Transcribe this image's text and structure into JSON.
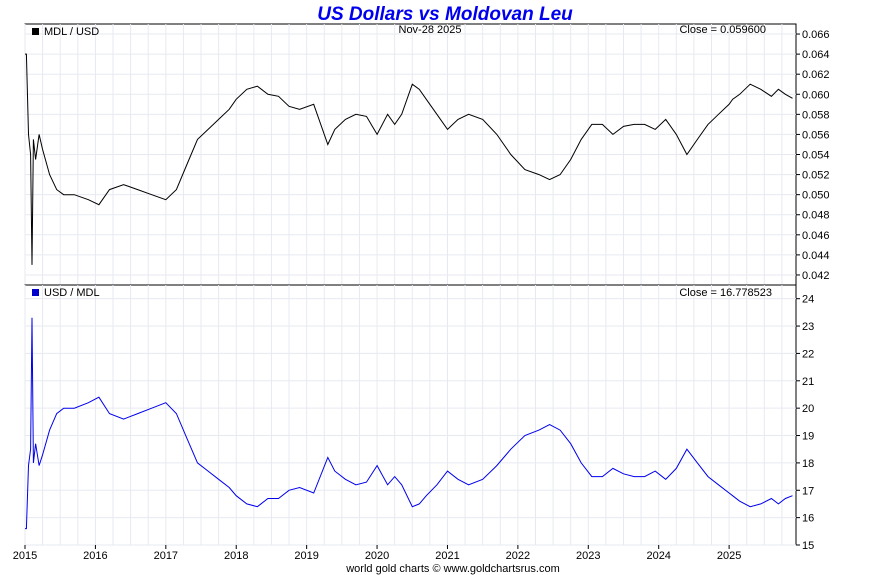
{
  "header": {
    "title": "US Dollars vs Moldovan Leu",
    "title_color": "#0000ee",
    "date": "Nov-28  2025",
    "footer": "world gold charts © www.goldchartsrus.com"
  },
  "chart_data": [
    {
      "type": "line",
      "legend": "MDL / USD",
      "legend_color": "#000000",
      "series_color": "#000000",
      "close_label": "Close = 0.059600",
      "ylim": [
        0.041,
        0.067
      ],
      "yticks": [
        0.042,
        0.044,
        0.046,
        0.048,
        0.05,
        0.052,
        0.054,
        0.056,
        0.058,
        0.06,
        0.062,
        0.064,
        0.066
      ],
      "ytick_labels": [
        "0.042",
        "0.044",
        "0.046",
        "0.048",
        "0.050",
        "0.052",
        "0.054",
        "0.056",
        "0.058",
        "0.060",
        "0.062",
        "0.064",
        "0.066"
      ],
      "grid": true,
      "x": [
        2015.0,
        2015.02,
        2015.05,
        2015.08,
        2015.1,
        2015.12,
        2015.15,
        2015.2,
        2015.25,
        2015.35,
        2015.45,
        2015.55,
        2015.7,
        2015.9,
        2016.05,
        2016.2,
        2016.4,
        2016.6,
        2016.8,
        2017.0,
        2017.15,
        2017.3,
        2017.45,
        2017.6,
        2017.75,
        2017.9,
        2018.0,
        2018.15,
        2018.3,
        2018.45,
        2018.6,
        2018.75,
        2018.9,
        2019.1,
        2019.3,
        2019.4,
        2019.55,
        2019.7,
        2019.85,
        2020.0,
        2020.15,
        2020.25,
        2020.35,
        2020.5,
        2020.6,
        2020.7,
        2020.85,
        2021.0,
        2021.15,
        2021.3,
        2021.5,
        2021.7,
        2021.9,
        2022.1,
        2022.3,
        2022.45,
        2022.6,
        2022.75,
        2022.9,
        2023.05,
        2023.2,
        2023.35,
        2023.5,
        2023.65,
        2023.8,
        2023.95,
        2024.1,
        2024.25,
        2024.4,
        2024.55,
        2024.7,
        2024.85,
        2025.0,
        2025.05,
        2025.15,
        2025.3,
        2025.45,
        2025.6,
        2025.7,
        2025.8,
        2025.9
      ],
      "y": [
        0.064,
        0.064,
        0.056,
        0.054,
        0.043,
        0.0555,
        0.0535,
        0.056,
        0.0545,
        0.052,
        0.0505,
        0.05,
        0.05,
        0.0495,
        0.049,
        0.0505,
        0.051,
        0.0505,
        0.05,
        0.0495,
        0.0505,
        0.053,
        0.0555,
        0.0565,
        0.0575,
        0.0585,
        0.0595,
        0.0605,
        0.0608,
        0.06,
        0.0598,
        0.0588,
        0.0585,
        0.059,
        0.055,
        0.0565,
        0.0575,
        0.058,
        0.0578,
        0.056,
        0.058,
        0.057,
        0.058,
        0.061,
        0.0605,
        0.0595,
        0.058,
        0.0565,
        0.0575,
        0.058,
        0.0575,
        0.056,
        0.054,
        0.0525,
        0.052,
        0.0515,
        0.052,
        0.0535,
        0.0555,
        0.057,
        0.057,
        0.056,
        0.0568,
        0.057,
        0.057,
        0.0565,
        0.0575,
        0.056,
        0.054,
        0.0555,
        0.057,
        0.058,
        0.059,
        0.0595,
        0.06,
        0.061,
        0.0605,
        0.0598,
        0.0605,
        0.06,
        0.0596
      ]
    },
    {
      "type": "line",
      "legend": "USD / MDL",
      "legend_color": "#0000cc",
      "series_color": "#0000ee",
      "close_label": "Close = 16.778523",
      "ylim": [
        15,
        24.5
      ],
      "yticks": [
        15,
        16,
        17,
        18,
        19,
        20,
        21,
        22,
        23,
        24
      ],
      "ytick_labels": [
        "15",
        "16",
        "17",
        "18",
        "19",
        "20",
        "21",
        "22",
        "23",
        "24"
      ],
      "grid": true,
      "x": [
        2015.0,
        2015.02,
        2015.05,
        2015.08,
        2015.1,
        2015.12,
        2015.15,
        2015.2,
        2015.25,
        2015.35,
        2015.45,
        2015.55,
        2015.7,
        2015.9,
        2016.05,
        2016.2,
        2016.4,
        2016.6,
        2016.8,
        2017.0,
        2017.15,
        2017.3,
        2017.45,
        2017.6,
        2017.75,
        2017.9,
        2018.0,
        2018.15,
        2018.3,
        2018.45,
        2018.6,
        2018.75,
        2018.9,
        2019.1,
        2019.3,
        2019.4,
        2019.55,
        2019.7,
        2019.85,
        2020.0,
        2020.15,
        2020.25,
        2020.35,
        2020.5,
        2020.6,
        2020.7,
        2020.85,
        2021.0,
        2021.15,
        2021.3,
        2021.5,
        2021.7,
        2021.9,
        2022.1,
        2022.3,
        2022.45,
        2022.6,
        2022.75,
        2022.9,
        2023.05,
        2023.2,
        2023.35,
        2023.5,
        2023.65,
        2023.8,
        2023.95,
        2024.1,
        2024.25,
        2024.4,
        2024.55,
        2024.7,
        2024.85,
        2025.0,
        2025.05,
        2025.15,
        2025.3,
        2025.45,
        2025.6,
        2025.7,
        2025.8,
        2025.9
      ],
      "y": [
        15.6,
        15.6,
        17.9,
        18.5,
        23.3,
        18.0,
        18.7,
        17.9,
        18.3,
        19.2,
        19.8,
        20.0,
        20.0,
        20.2,
        20.4,
        19.8,
        19.6,
        19.8,
        20.0,
        20.2,
        19.8,
        18.9,
        18.0,
        17.7,
        17.4,
        17.1,
        16.8,
        16.5,
        16.4,
        16.7,
        16.7,
        17.0,
        17.1,
        16.9,
        18.2,
        17.7,
        17.4,
        17.2,
        17.3,
        17.9,
        17.2,
        17.5,
        17.2,
        16.4,
        16.5,
        16.8,
        17.2,
        17.7,
        17.4,
        17.2,
        17.4,
        17.9,
        18.5,
        19.0,
        19.2,
        19.4,
        19.2,
        18.7,
        18.0,
        17.5,
        17.5,
        17.8,
        17.6,
        17.5,
        17.5,
        17.7,
        17.4,
        17.8,
        18.5,
        18.0,
        17.5,
        17.2,
        16.9,
        16.8,
        16.6,
        16.4,
        16.5,
        16.7,
        16.5,
        16.7,
        16.8
      ]
    }
  ],
  "x_axis": {
    "xlim": [
      2015.0,
      2025.95
    ],
    "ticks": [
      2015,
      2016,
      2017,
      2018,
      2019,
      2020,
      2021,
      2022,
      2023,
      2024,
      2025
    ],
    "tick_labels": [
      "2015",
      "2016",
      "2017",
      "2018",
      "2019",
      "2020",
      "2021",
      "2022",
      "2023",
      "2024",
      "2025"
    ]
  }
}
